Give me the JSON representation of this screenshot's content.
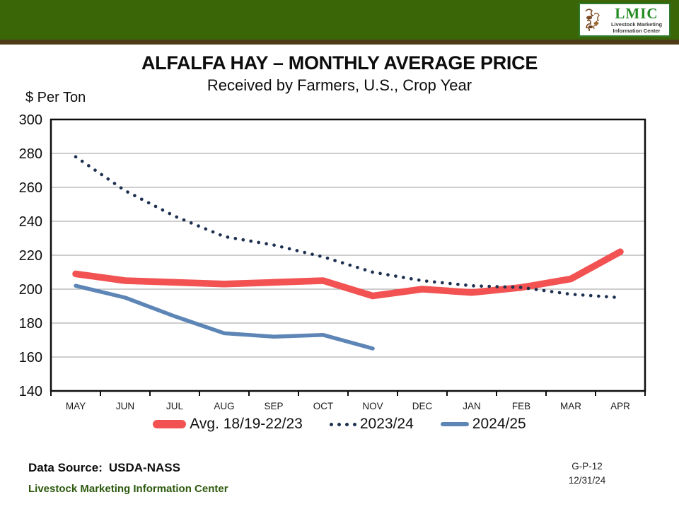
{
  "header": {
    "logo": {
      "acronym": "LMIC",
      "line1": "Livestock Marketing",
      "line2": "Information Center"
    }
  },
  "title": "ALFALFA HAY – MONTHLY AVERAGE PRICE",
  "subtitle": "Received by Farmers, U.S., Crop Year",
  "chart_data": {
    "type": "line",
    "title": "ALFALFA HAY – MONTHLY AVERAGE PRICE",
    "subtitle": "Received by Farmers, U.S., Crop Year",
    "ylabel": "$ Per Ton",
    "xlabel": "",
    "ylim": [
      140,
      300
    ],
    "yticks": [
      300,
      280,
      260,
      240,
      220,
      200,
      180,
      160,
      140
    ],
    "grid": "horizontal",
    "legend_position": "bottom",
    "categories": [
      "MAY",
      "JUN",
      "JUL",
      "AUG",
      "SEP",
      "OCT",
      "NOV",
      "DEC",
      "JAN",
      "FEB",
      "MAR",
      "APR"
    ],
    "series": [
      {
        "name": "Avg. 18/19-22/23",
        "style": "solid-thick",
        "color": "#f25252",
        "values": [
          209,
          205,
          204,
          203,
          204,
          205,
          196,
          200,
          198,
          201,
          206,
          222
        ]
      },
      {
        "name": "2023/24",
        "style": "dotted",
        "color": "#1d3050",
        "values": [
          278,
          258,
          243,
          231,
          226,
          219,
          210,
          205,
          202,
          201,
          197,
          195
        ]
      },
      {
        "name": "2024/25",
        "style": "solid",
        "color": "#5d86b6",
        "values": [
          202,
          195,
          184,
          174,
          172,
          173,
          165,
          null,
          null,
          null,
          null,
          null
        ]
      }
    ]
  },
  "footer": {
    "data_source_label": "Data Source:",
    "data_source_value": "USDA-NASS",
    "org": "Livestock Marketing Information Center",
    "ref_code": "G-P-12",
    "date": "12/31/24"
  },
  "colors": {
    "header_green": "#3a6608",
    "header_strip_brown": "#4e3b17",
    "logo_green": "#228b22",
    "logo_art_brown": "#7a4a22",
    "grid_gray": "#9e9e9e",
    "axis_black": "#0d0d0d",
    "footer_org_green": "#2d5a0e"
  }
}
